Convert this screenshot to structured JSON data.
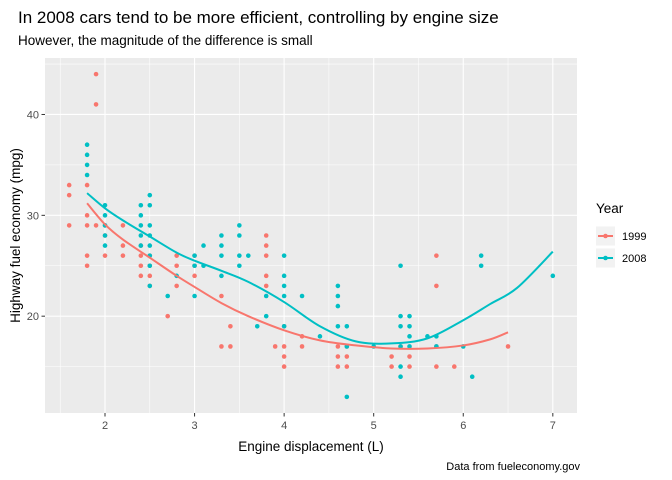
{
  "chart_data": {
    "type": "scatter",
    "title": "In 2008 cars tend to be more efficient, controlling by engine size",
    "subtitle": "However, the magnitude of the difference is small",
    "caption": "Data from fueleconomy.gov",
    "xlabel": "Engine displacement (L)",
    "ylabel": "Highway fuel economy (mpg)",
    "xlim": [
      1.33,
      7.27
    ],
    "ylim": [
      10.4,
      45.6
    ],
    "x_ticks": [
      2,
      3,
      4,
      5,
      6,
      7
    ],
    "y_ticks": [
      20,
      30,
      40
    ],
    "grid": true,
    "legend": {
      "title": "Year",
      "position": "right"
    },
    "series": [
      {
        "name": "1999",
        "color": "#F8766D",
        "points": [
          [
            1.6,
            33
          ],
          [
            1.6,
            32
          ],
          [
            1.6,
            29
          ],
          [
            1.8,
            29
          ],
          [
            1.8,
            26
          ],
          [
            1.8,
            25
          ],
          [
            1.8,
            30
          ],
          [
            1.8,
            33
          ],
          [
            1.9,
            44
          ],
          [
            1.9,
            41
          ],
          [
            1.9,
            29
          ],
          [
            2.0,
            29
          ],
          [
            2.0,
            28
          ],
          [
            2.0,
            26
          ],
          [
            2.2,
            27
          ],
          [
            2.2,
            26
          ],
          [
            2.2,
            29
          ],
          [
            2.4,
            27
          ],
          [
            2.4,
            26
          ],
          [
            2.4,
            24
          ],
          [
            2.4,
            25
          ],
          [
            2.5,
            26
          ],
          [
            2.5,
            25
          ],
          [
            2.5,
            24
          ],
          [
            2.5,
            23
          ],
          [
            2.7,
            20
          ],
          [
            2.8,
            26
          ],
          [
            2.8,
            25
          ],
          [
            2.8,
            23
          ],
          [
            3.0,
            26
          ],
          [
            3.0,
            25
          ],
          [
            3.0,
            24
          ],
          [
            3.3,
            22
          ],
          [
            3.3,
            17
          ],
          [
            3.4,
            19
          ],
          [
            3.4,
            17
          ],
          [
            3.8,
            28
          ],
          [
            3.8,
            27
          ],
          [
            3.8,
            26
          ],
          [
            3.8,
            24
          ],
          [
            3.8,
            23
          ],
          [
            3.9,
            17
          ],
          [
            4.0,
            19
          ],
          [
            4.0,
            17
          ],
          [
            4.0,
            16
          ],
          [
            4.0,
            15
          ],
          [
            4.2,
            17
          ],
          [
            4.2,
            18
          ],
          [
            4.6,
            17
          ],
          [
            4.6,
            16
          ],
          [
            4.6,
            15
          ],
          [
            4.7,
            17
          ],
          [
            4.7,
            16
          ],
          [
            4.7,
            15
          ],
          [
            5.2,
            16
          ],
          [
            5.2,
            15
          ],
          [
            5.3,
            17
          ],
          [
            5.4,
            16
          ],
          [
            5.4,
            15
          ],
          [
            5.7,
            26
          ],
          [
            5.7,
            23
          ],
          [
            5.7,
            17
          ],
          [
            5.7,
            15
          ],
          [
            5.9,
            15
          ],
          [
            6.5,
            17
          ]
        ],
        "smooth": [
          [
            1.8,
            31.2
          ],
          [
            2.0,
            29.1
          ],
          [
            2.2,
            27.6
          ],
          [
            2.5,
            25.8
          ],
          [
            2.8,
            24.0
          ],
          [
            3.0,
            22.9
          ],
          [
            3.3,
            21.3
          ],
          [
            3.6,
            20.0
          ],
          [
            4.0,
            18.6
          ],
          [
            4.4,
            17.6
          ],
          [
            4.8,
            17.1
          ],
          [
            5.2,
            16.8
          ],
          [
            5.6,
            16.8
          ],
          [
            6.0,
            17.1
          ],
          [
            6.3,
            17.7
          ],
          [
            6.5,
            18.4
          ]
        ]
      },
      {
        "name": "2008",
        "color": "#00BFC4",
        "points": [
          [
            1.8,
            37
          ],
          [
            1.8,
            36
          ],
          [
            1.8,
            35
          ],
          [
            1.8,
            34
          ],
          [
            2.0,
            31
          ],
          [
            2.0,
            30
          ],
          [
            2.0,
            29
          ],
          [
            2.0,
            28
          ],
          [
            2.0,
            27
          ],
          [
            2.4,
            31
          ],
          [
            2.4,
            30
          ],
          [
            2.4,
            29
          ],
          [
            2.4,
            28
          ],
          [
            2.4,
            27
          ],
          [
            2.5,
            32
          ],
          [
            2.5,
            31
          ],
          [
            2.5,
            29
          ],
          [
            2.5,
            28
          ],
          [
            2.5,
            27
          ],
          [
            2.5,
            26
          ],
          [
            2.5,
            25
          ],
          [
            2.5,
            23
          ],
          [
            2.7,
            22
          ],
          [
            2.8,
            24
          ],
          [
            3.0,
            26
          ],
          [
            3.0,
            25
          ],
          [
            3.0,
            22
          ],
          [
            3.1,
            27
          ],
          [
            3.1,
            25
          ],
          [
            3.3,
            28
          ],
          [
            3.3,
            27
          ],
          [
            3.3,
            26
          ],
          [
            3.3,
            24
          ],
          [
            3.5,
            29
          ],
          [
            3.5,
            28
          ],
          [
            3.5,
            26
          ],
          [
            3.5,
            25
          ],
          [
            3.6,
            26
          ],
          [
            3.7,
            19
          ],
          [
            3.8,
            22
          ],
          [
            3.8,
            20
          ],
          [
            4.0,
            26
          ],
          [
            4.0,
            24
          ],
          [
            4.0,
            23
          ],
          [
            4.0,
            22
          ],
          [
            4.0,
            19
          ],
          [
            4.2,
            22
          ],
          [
            4.4,
            18
          ],
          [
            4.6,
            23
          ],
          [
            4.6,
            22
          ],
          [
            4.6,
            21
          ],
          [
            4.6,
            19
          ],
          [
            4.7,
            19
          ],
          [
            4.7,
            17
          ],
          [
            4.7,
            12
          ],
          [
            5.0,
            17
          ],
          [
            5.3,
            25
          ],
          [
            5.3,
            20
          ],
          [
            5.3,
            19
          ],
          [
            5.3,
            17
          ],
          [
            5.3,
            15
          ],
          [
            5.3,
            14
          ],
          [
            5.4,
            20
          ],
          [
            5.4,
            19
          ],
          [
            5.4,
            18
          ],
          [
            5.4,
            17
          ],
          [
            5.6,
            18
          ],
          [
            5.7,
            18
          ],
          [
            5.7,
            17
          ],
          [
            6.0,
            17
          ],
          [
            6.1,
            14
          ],
          [
            6.2,
            26
          ],
          [
            6.2,
            25
          ],
          [
            7.0,
            24
          ]
        ],
        "smooth": [
          [
            1.8,
            32.2
          ],
          [
            2.0,
            30.7
          ],
          [
            2.2,
            29.5
          ],
          [
            2.5,
            27.9
          ],
          [
            2.8,
            26.3
          ],
          [
            3.0,
            25.5
          ],
          [
            3.3,
            24.5
          ],
          [
            3.6,
            23.4
          ],
          [
            4.0,
            21.4
          ],
          [
            4.4,
            19.0
          ],
          [
            4.8,
            17.5
          ],
          [
            5.2,
            17.3
          ],
          [
            5.6,
            17.8
          ],
          [
            6.0,
            19.6
          ],
          [
            6.3,
            21.2
          ],
          [
            6.6,
            22.8
          ],
          [
            7.0,
            26.4
          ]
        ]
      }
    ]
  }
}
